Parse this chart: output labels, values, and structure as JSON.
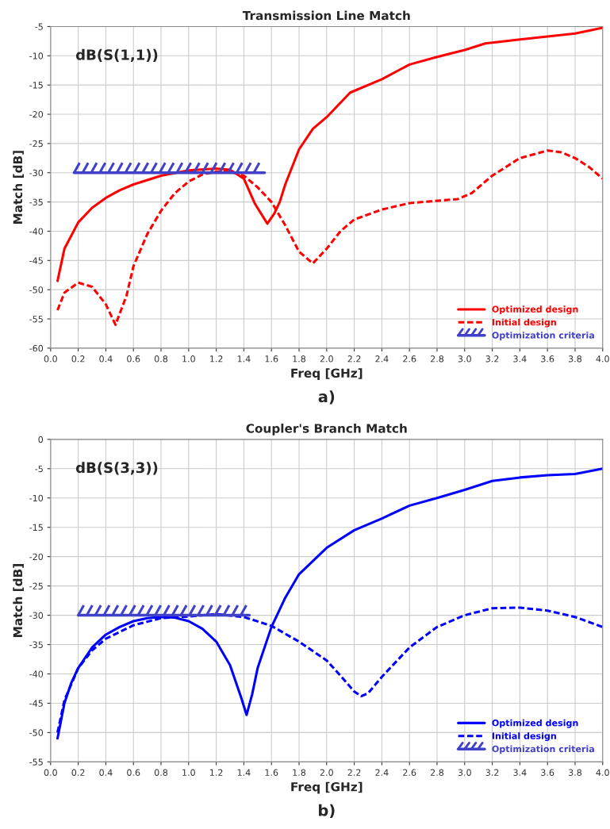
{
  "chart_data": [
    {
      "type": "line",
      "title": "Transmission Line Match",
      "xlabel": "Freq [GHz]",
      "ylabel": "Match [dB]",
      "annotations": [
        "dB(S(1,1))",
        "a)"
      ],
      "xlim": [
        0,
        4
      ],
      "xticks": [
        {
          "value": 0,
          "label": "0.0"
        },
        0.2,
        0.4,
        0.6,
        0.8,
        {
          "value": 1,
          "label": "1.0"
        },
        1.2,
        1.4,
        1.6,
        1.8,
        {
          "value": 2,
          "label": "2.0"
        },
        2.2,
        2.4,
        2.6,
        2.8,
        {
          "value": 3,
          "label": "3.0"
        },
        3.2,
        3.4,
        3.6,
        3.8,
        {
          "value": 4,
          "label": "4.0"
        }
      ],
      "ylim": [
        -60,
        -5
      ],
      "yticks": [
        -60,
        -55,
        -50,
        -45,
        -40,
        -35,
        -30,
        -25,
        -20,
        -15,
        -10,
        -5
      ],
      "grid": true,
      "legend": "bottom right",
      "series": [
        {
          "name": "Optimized design",
          "color": "#ff0000",
          "line_style": "solid",
          "x": [
            0.05,
            0.1,
            0.2,
            0.3,
            0.4,
            0.5,
            0.6,
            0.8,
            1.0,
            1.2,
            1.3,
            1.4,
            1.48,
            1.57,
            1.62,
            1.66,
            1.7,
            1.8,
            1.9,
            2.0,
            2.17,
            2.4,
            2.6,
            2.8,
            3.0,
            3.15,
            3.4,
            3.64,
            3.8,
            4.0
          ],
          "values": [
            -48.5,
            -43,
            -38.5,
            -36,
            -34.3,
            -33,
            -32,
            -30.5,
            -29.6,
            -29.3,
            -29.5,
            -31,
            -35.3,
            -38.7,
            -37,
            -35,
            -32,
            -26,
            -22.5,
            -20.5,
            -16.3,
            -14,
            -11.5,
            -10.2,
            -9,
            -7.9,
            -7.2,
            -6.6,
            -6.2,
            -5.2
          ]
        },
        {
          "name": "Initial design",
          "color": "#ff0000",
          "line_style": "dashed",
          "x": [
            0.05,
            0.1,
            0.2,
            0.3,
            0.4,
            0.47,
            0.55,
            0.6,
            0.7,
            0.8,
            0.9,
            1.0,
            1.1,
            1.2,
            1.3,
            1.4,
            1.5,
            1.6,
            1.7,
            1.8,
            1.9,
            2.0,
            2.1,
            2.2,
            2.4,
            2.6,
            2.8,
            2.95,
            3.05,
            3.2,
            3.4,
            3.6,
            3.7,
            3.8,
            3.9,
            4.0
          ],
          "values": [
            -53.5,
            -50.5,
            -48.8,
            -49.5,
            -52.5,
            -56,
            -51,
            -46,
            -40.5,
            -36.5,
            -33.5,
            -31.5,
            -30.3,
            -29.8,
            -29.8,
            -30.5,
            -32.5,
            -35,
            -39,
            -43.5,
            -45.5,
            -43,
            -40,
            -38,
            -36.3,
            -35.2,
            -34.8,
            -34.5,
            -33.5,
            -30.5,
            -27.5,
            -26.2,
            -26.5,
            -27.5,
            -29,
            -31
          ]
        },
        {
          "name": "Optimization criteria",
          "color": "#4040c8",
          "line_style": "solid",
          "x": [
            0.17,
            1.55
          ],
          "values": [
            -30,
            -30
          ]
        }
      ]
    },
    {
      "type": "line",
      "title": "Coupler's Branch Match",
      "xlabel": "Freq [GHz]",
      "ylabel": "Match [dB]",
      "annotations": [
        "dB(S(3,3))",
        "b)"
      ],
      "xlim": [
        0,
        4
      ],
      "xticks": [
        {
          "value": 0,
          "label": "0.0"
        },
        0.2,
        0.4,
        0.6,
        0.8,
        {
          "value": 1,
          "label": "1.0"
        },
        1.2,
        1.4,
        1.6,
        1.8,
        {
          "value": 2,
          "label": "2.0"
        },
        2.2,
        2.4,
        2.6,
        2.8,
        {
          "value": 3,
          "label": "3.0"
        },
        3.2,
        3.4,
        3.6,
        3.8,
        {
          "value": 4,
          "label": "4.0"
        }
      ],
      "ylim": [
        -55,
        0
      ],
      "yticks": [
        -55,
        -50,
        -45,
        -40,
        -35,
        -30,
        -25,
        -20,
        -15,
        -10,
        -5,
        0
      ],
      "grid": true,
      "legend": "bottom right",
      "series": [
        {
          "name": "Optimized design",
          "color": "#0000ff",
          "line_style": "solid",
          "x": [
            0.05,
            0.1,
            0.15,
            0.2,
            0.3,
            0.4,
            0.5,
            0.6,
            0.7,
            0.8,
            0.9,
            1.0,
            1.1,
            1.2,
            1.3,
            1.38,
            1.42,
            1.46,
            1.5,
            1.6,
            1.7,
            1.8,
            2.0,
            2.2,
            2.4,
            2.6,
            2.8,
            3.0,
            3.2,
            3.4,
            3.6,
            3.8,
            4.0
          ],
          "values": [
            -51,
            -45,
            -41.5,
            -39,
            -35.5,
            -33.3,
            -32,
            -31,
            -30.5,
            -30.3,
            -30.4,
            -31,
            -32.3,
            -34.5,
            -38.5,
            -44,
            -47,
            -43.5,
            -39,
            -32,
            -27,
            -23,
            -18.5,
            -15.5,
            -13.5,
            -11.3,
            -10,
            -8.6,
            -7.1,
            -6.5,
            -6.1,
            -5.9,
            -5
          ]
        },
        {
          "name": "Initial design",
          "color": "#0000ff",
          "line_style": "dashed",
          "x": [
            0.05,
            0.1,
            0.2,
            0.3,
            0.4,
            0.6,
            0.8,
            1.0,
            1.2,
            1.4,
            1.6,
            1.8,
            2.0,
            2.1,
            2.2,
            2.25,
            2.3,
            2.4,
            2.6,
            2.8,
            3.0,
            3.2,
            3.4,
            3.6,
            3.8,
            4.0
          ],
          "values": [
            -50,
            -44.5,
            -39,
            -36,
            -34,
            -31.7,
            -30.5,
            -30.2,
            -29.8,
            -30.3,
            -31.8,
            -34.5,
            -37.7,
            -40.3,
            -43,
            -43.8,
            -43.3,
            -40.5,
            -35.5,
            -32,
            -30,
            -28.8,
            -28.7,
            -29.2,
            -30.3,
            -32
          ]
        },
        {
          "name": "Optimization criteria",
          "color": "#4040c8",
          "line_style": "solid",
          "x": [
            0.2,
            1.44
          ],
          "values": [
            -30,
            -30
          ]
        }
      ]
    }
  ]
}
